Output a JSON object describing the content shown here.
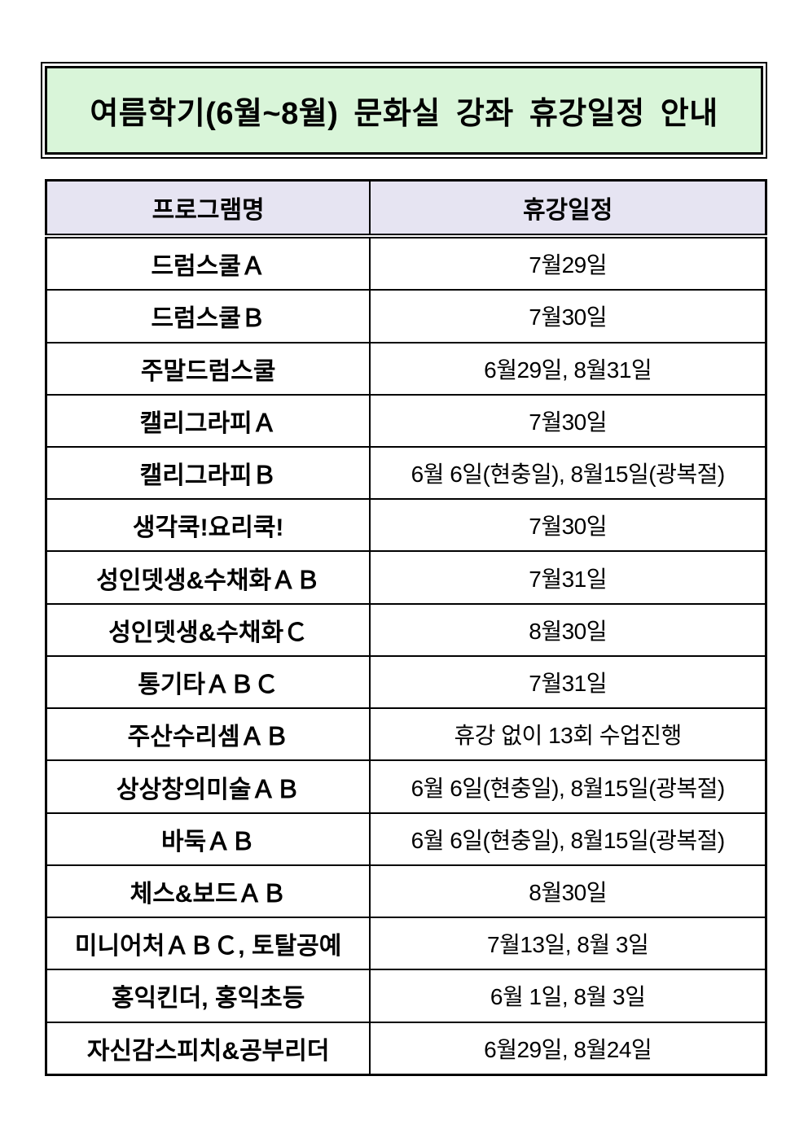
{
  "title": "여름학기(6월~8월) 문화실 강좌 휴강일정 안내",
  "colors": {
    "title_bg": "#d9f5d9",
    "header_bg": "#e6e4f2",
    "border": "#000000",
    "text": "#000000",
    "page_bg": "#ffffff"
  },
  "table": {
    "headers": {
      "program": "프로그램명",
      "schedule": "휴강일정"
    },
    "rows": [
      {
        "program": "드럼스쿨Ａ",
        "schedule": "7월29일"
      },
      {
        "program": "드럼스쿨Ｂ",
        "schedule": "7월30일"
      },
      {
        "program": "주말드럼스쿨",
        "schedule": "6월29일, 8월31일"
      },
      {
        "program": "캘리그라피Ａ",
        "schedule": "7월30일"
      },
      {
        "program": "캘리그라피Ｂ",
        "schedule": "6월 6일(현충일), 8월15일(광복절)"
      },
      {
        "program": "생각쿡!요리쿡!",
        "schedule": "7월30일"
      },
      {
        "program": "성인뎃생&수채화ＡＢ",
        "schedule": "7월31일"
      },
      {
        "program": "성인뎃생&수채화Ｃ",
        "schedule": "8월30일"
      },
      {
        "program": "통기타ＡＢＣ",
        "schedule": "7월31일"
      },
      {
        "program": "주산수리셈ＡＢ",
        "schedule": "휴강 없이 13회 수업진행"
      },
      {
        "program": "상상창의미술ＡＢ",
        "schedule": "6월 6일(현충일), 8월15일(광복절)"
      },
      {
        "program": "바둑ＡＢ",
        "schedule": "6월 6일(현충일), 8월15일(광복절)"
      },
      {
        "program": "체스&보드ＡＢ",
        "schedule": "8월30일"
      },
      {
        "program": "미니어처ＡＢＣ, 토탈공예",
        "schedule": "7월13일, 8월 3일"
      },
      {
        "program": "홍익킨더, 홍익초등",
        "schedule": "6월 1일, 8월 3일"
      },
      {
        "program": "자신감스피치&공부리더",
        "schedule": "6월29일, 8월24일"
      }
    ]
  }
}
